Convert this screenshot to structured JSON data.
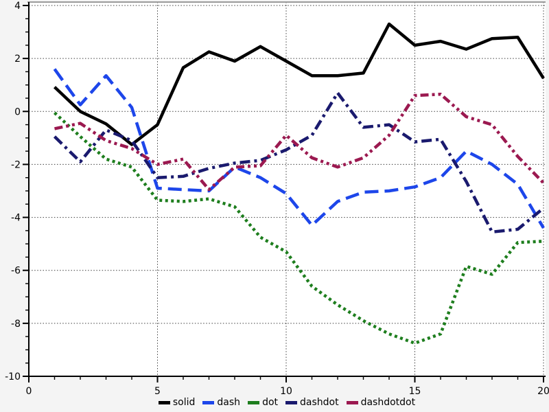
{
  "figure": {
    "background": "#f4f4f4",
    "plot_background": "#ffffff",
    "grid_color": "#3c3c3c",
    "axis_color": "#000000",
    "top_border_color": "#9a9a9a",
    "tick_label_color": "#000000",
    "tick_font_size": 14
  },
  "chart_data": {
    "type": "line",
    "title": "",
    "xlabel": "",
    "ylabel": "",
    "xlim": [
      0,
      20
    ],
    "ylim": [
      -10,
      4
    ],
    "x_major_ticks": [
      0,
      5,
      10,
      15,
      20
    ],
    "x_minor_step": 1,
    "y_major_ticks": [
      4,
      2,
      0,
      -2,
      -4,
      -6,
      -8,
      -10
    ],
    "y_minor_step": 0.5,
    "grid": "dotted lines at major ticks, both axes",
    "legend_position": "bottom-center",
    "x": [
      1,
      2,
      3,
      4,
      5,
      6,
      7,
      8,
      9,
      10,
      11,
      12,
      13,
      14,
      15,
      16,
      17,
      18,
      19,
      20
    ],
    "series": [
      {
        "name": "solid",
        "color": "#000000",
        "style": "solid",
        "values": [
          0.92,
          0.0,
          -0.47,
          -1.25,
          -0.5,
          1.65,
          2.25,
          1.9,
          2.45,
          1.9,
          1.35,
          1.35,
          1.45,
          3.3,
          2.5,
          2.65,
          2.35,
          2.75,
          2.8,
          1.25
        ]
      },
      {
        "name": "dash",
        "color": "#1d46ea",
        "style": "dash",
        "values": [
          1.6,
          0.25,
          1.35,
          0.15,
          -2.9,
          -2.95,
          -3.0,
          -2.1,
          -2.5,
          -3.1,
          -4.3,
          -3.4,
          -3.05,
          -3.0,
          -2.85,
          -2.5,
          -1.5,
          -2.0,
          -2.75,
          -4.4
        ]
      },
      {
        "name": "dot",
        "color": "#1e7e1e",
        "style": "dot",
        "values": [
          -0.05,
          -0.95,
          -1.8,
          -2.1,
          -3.35,
          -3.4,
          -3.3,
          -3.6,
          -4.75,
          -5.3,
          -6.6,
          -7.3,
          -7.9,
          -8.4,
          -8.75,
          -8.4,
          -5.85,
          -6.15,
          -4.95,
          -4.9
        ]
      },
      {
        "name": "dashdot",
        "color": "#1a1a6e",
        "style": "dashdot",
        "values": [
          -0.95,
          -1.9,
          -0.7,
          -1.1,
          -2.5,
          -2.45,
          -2.15,
          -1.95,
          -1.85,
          -1.45,
          -0.9,
          0.7,
          -0.6,
          -0.5,
          -1.15,
          -1.05,
          -2.65,
          -4.55,
          -4.45,
          -3.65
        ]
      },
      {
        "name": "dashdotdot",
        "color": "#9b1950",
        "style": "dashdotdot",
        "values": [
          -0.65,
          -0.45,
          -1.1,
          -1.4,
          -2.0,
          -1.8,
          -2.95,
          -2.1,
          -2.05,
          -0.9,
          -1.75,
          -2.1,
          -1.75,
          -0.9,
          0.6,
          0.65,
          -0.2,
          -0.5,
          -1.7,
          -2.7
        ]
      }
    ]
  }
}
